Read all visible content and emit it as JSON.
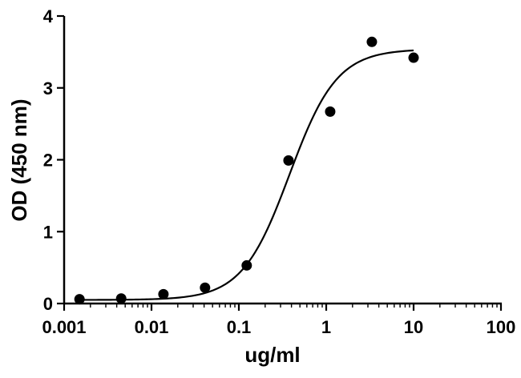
{
  "chart_data": {
    "type": "scatter",
    "title": "",
    "xlabel": "ug/ml",
    "ylabel": "OD (450 nm)",
    "x_scale": "log",
    "xlim": [
      0.001,
      100
    ],
    "ylim": [
      0,
      4
    ],
    "x_ticks": [
      {
        "value": 0.001,
        "label": "0.001"
      },
      {
        "value": 0.01,
        "label": "0.01"
      },
      {
        "value": 0.1,
        "label": "0.1"
      },
      {
        "value": 1,
        "label": "1"
      },
      {
        "value": 10,
        "label": "10"
      },
      {
        "value": 100,
        "label": "100"
      }
    ],
    "y_ticks": [
      {
        "value": 0,
        "label": "0"
      },
      {
        "value": 1,
        "label": "1"
      },
      {
        "value": 2,
        "label": "2"
      },
      {
        "value": 3,
        "label": "3"
      },
      {
        "value": 4,
        "label": "4"
      }
    ],
    "grid": false,
    "series": [
      {
        "kind": "points",
        "x": [
          0.0015,
          0.0045,
          0.0137,
          0.041,
          0.123,
          0.37,
          1.11,
          3.33,
          10
        ],
        "y": [
          0.06,
          0.07,
          0.13,
          0.22,
          0.53,
          1.99,
          2.67,
          3.64,
          3.42
        ]
      },
      {
        "kind": "fit-curve",
        "model": "4PL",
        "bottom": 0.05,
        "top": 3.54,
        "ec50": 0.38,
        "hill": 1.6
      }
    ],
    "colors": {
      "marker": "#000000",
      "line": "#000000",
      "axis": "#000000"
    }
  }
}
